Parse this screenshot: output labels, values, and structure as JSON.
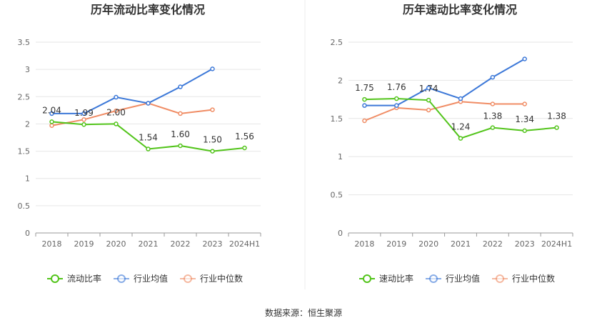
{
  "source_text": "数据来源：恒生聚源",
  "colors": {
    "company": "#52c41a",
    "industry_avg": "#3c78d8",
    "industry_median": "#f08c64",
    "grid": "#e6e6e6",
    "axis": "#999999"
  },
  "chart_data": [
    {
      "type": "line",
      "title": "历年流动比率变化情况",
      "categories": [
        "2018",
        "2019",
        "2020",
        "2021",
        "2022",
        "2023",
        "2024H1"
      ],
      "ylim": [
        0,
        3.5
      ],
      "yticks": [
        0,
        0.5,
        1,
        1.5,
        2,
        2.5,
        3,
        3.5
      ],
      "ytick_labels": [
        "0",
        "0.5",
        "1",
        "1.5",
        "2",
        "2.5",
        "3",
        "3.5"
      ],
      "grid": true,
      "legend_position": "bottom",
      "series": [
        {
          "name": "流动比率",
          "color": "#52c41a",
          "values": [
            2.04,
            1.99,
            2.0,
            1.54,
            1.6,
            1.5,
            1.56
          ],
          "labels": [
            "2.04",
            "1.99",
            "2.00",
            "1.54",
            "1.60",
            "1.50",
            "1.56"
          ]
        },
        {
          "name": "行业均值",
          "color": "#3c78d8",
          "values": [
            2.19,
            2.19,
            2.49,
            2.38,
            2.68,
            3.01,
            null
          ]
        },
        {
          "name": "行业中位数",
          "color": "#f08c64",
          "values": [
            1.97,
            2.08,
            2.24,
            2.38,
            2.19,
            2.26,
            null
          ]
        }
      ]
    },
    {
      "type": "line",
      "title": "历年速动比率变化情况",
      "categories": [
        "2018",
        "2019",
        "2020",
        "2021",
        "2022",
        "2023",
        "2024H1"
      ],
      "ylim": [
        0,
        2.5
      ],
      "yticks": [
        0,
        0.5,
        1,
        1.5,
        2,
        2.5
      ],
      "ytick_labels": [
        "0",
        "0.5",
        "1",
        "1.5",
        "2",
        "2.5"
      ],
      "grid": true,
      "legend_position": "bottom",
      "series": [
        {
          "name": "速动比率",
          "color": "#52c41a",
          "values": [
            1.75,
            1.76,
            1.74,
            1.24,
            1.38,
            1.34,
            1.38
          ],
          "labels": [
            "1.75",
            "1.76",
            "1.74",
            "1.24",
            "1.38",
            "1.34",
            "1.38"
          ]
        },
        {
          "name": "行业均值",
          "color": "#3c78d8",
          "values": [
            1.67,
            1.67,
            1.9,
            1.76,
            2.04,
            2.28,
            null
          ]
        },
        {
          "name": "行业中位数",
          "color": "#f08c64",
          "values": [
            1.47,
            1.64,
            1.61,
            1.72,
            1.69,
            1.69,
            null
          ]
        }
      ]
    }
  ]
}
